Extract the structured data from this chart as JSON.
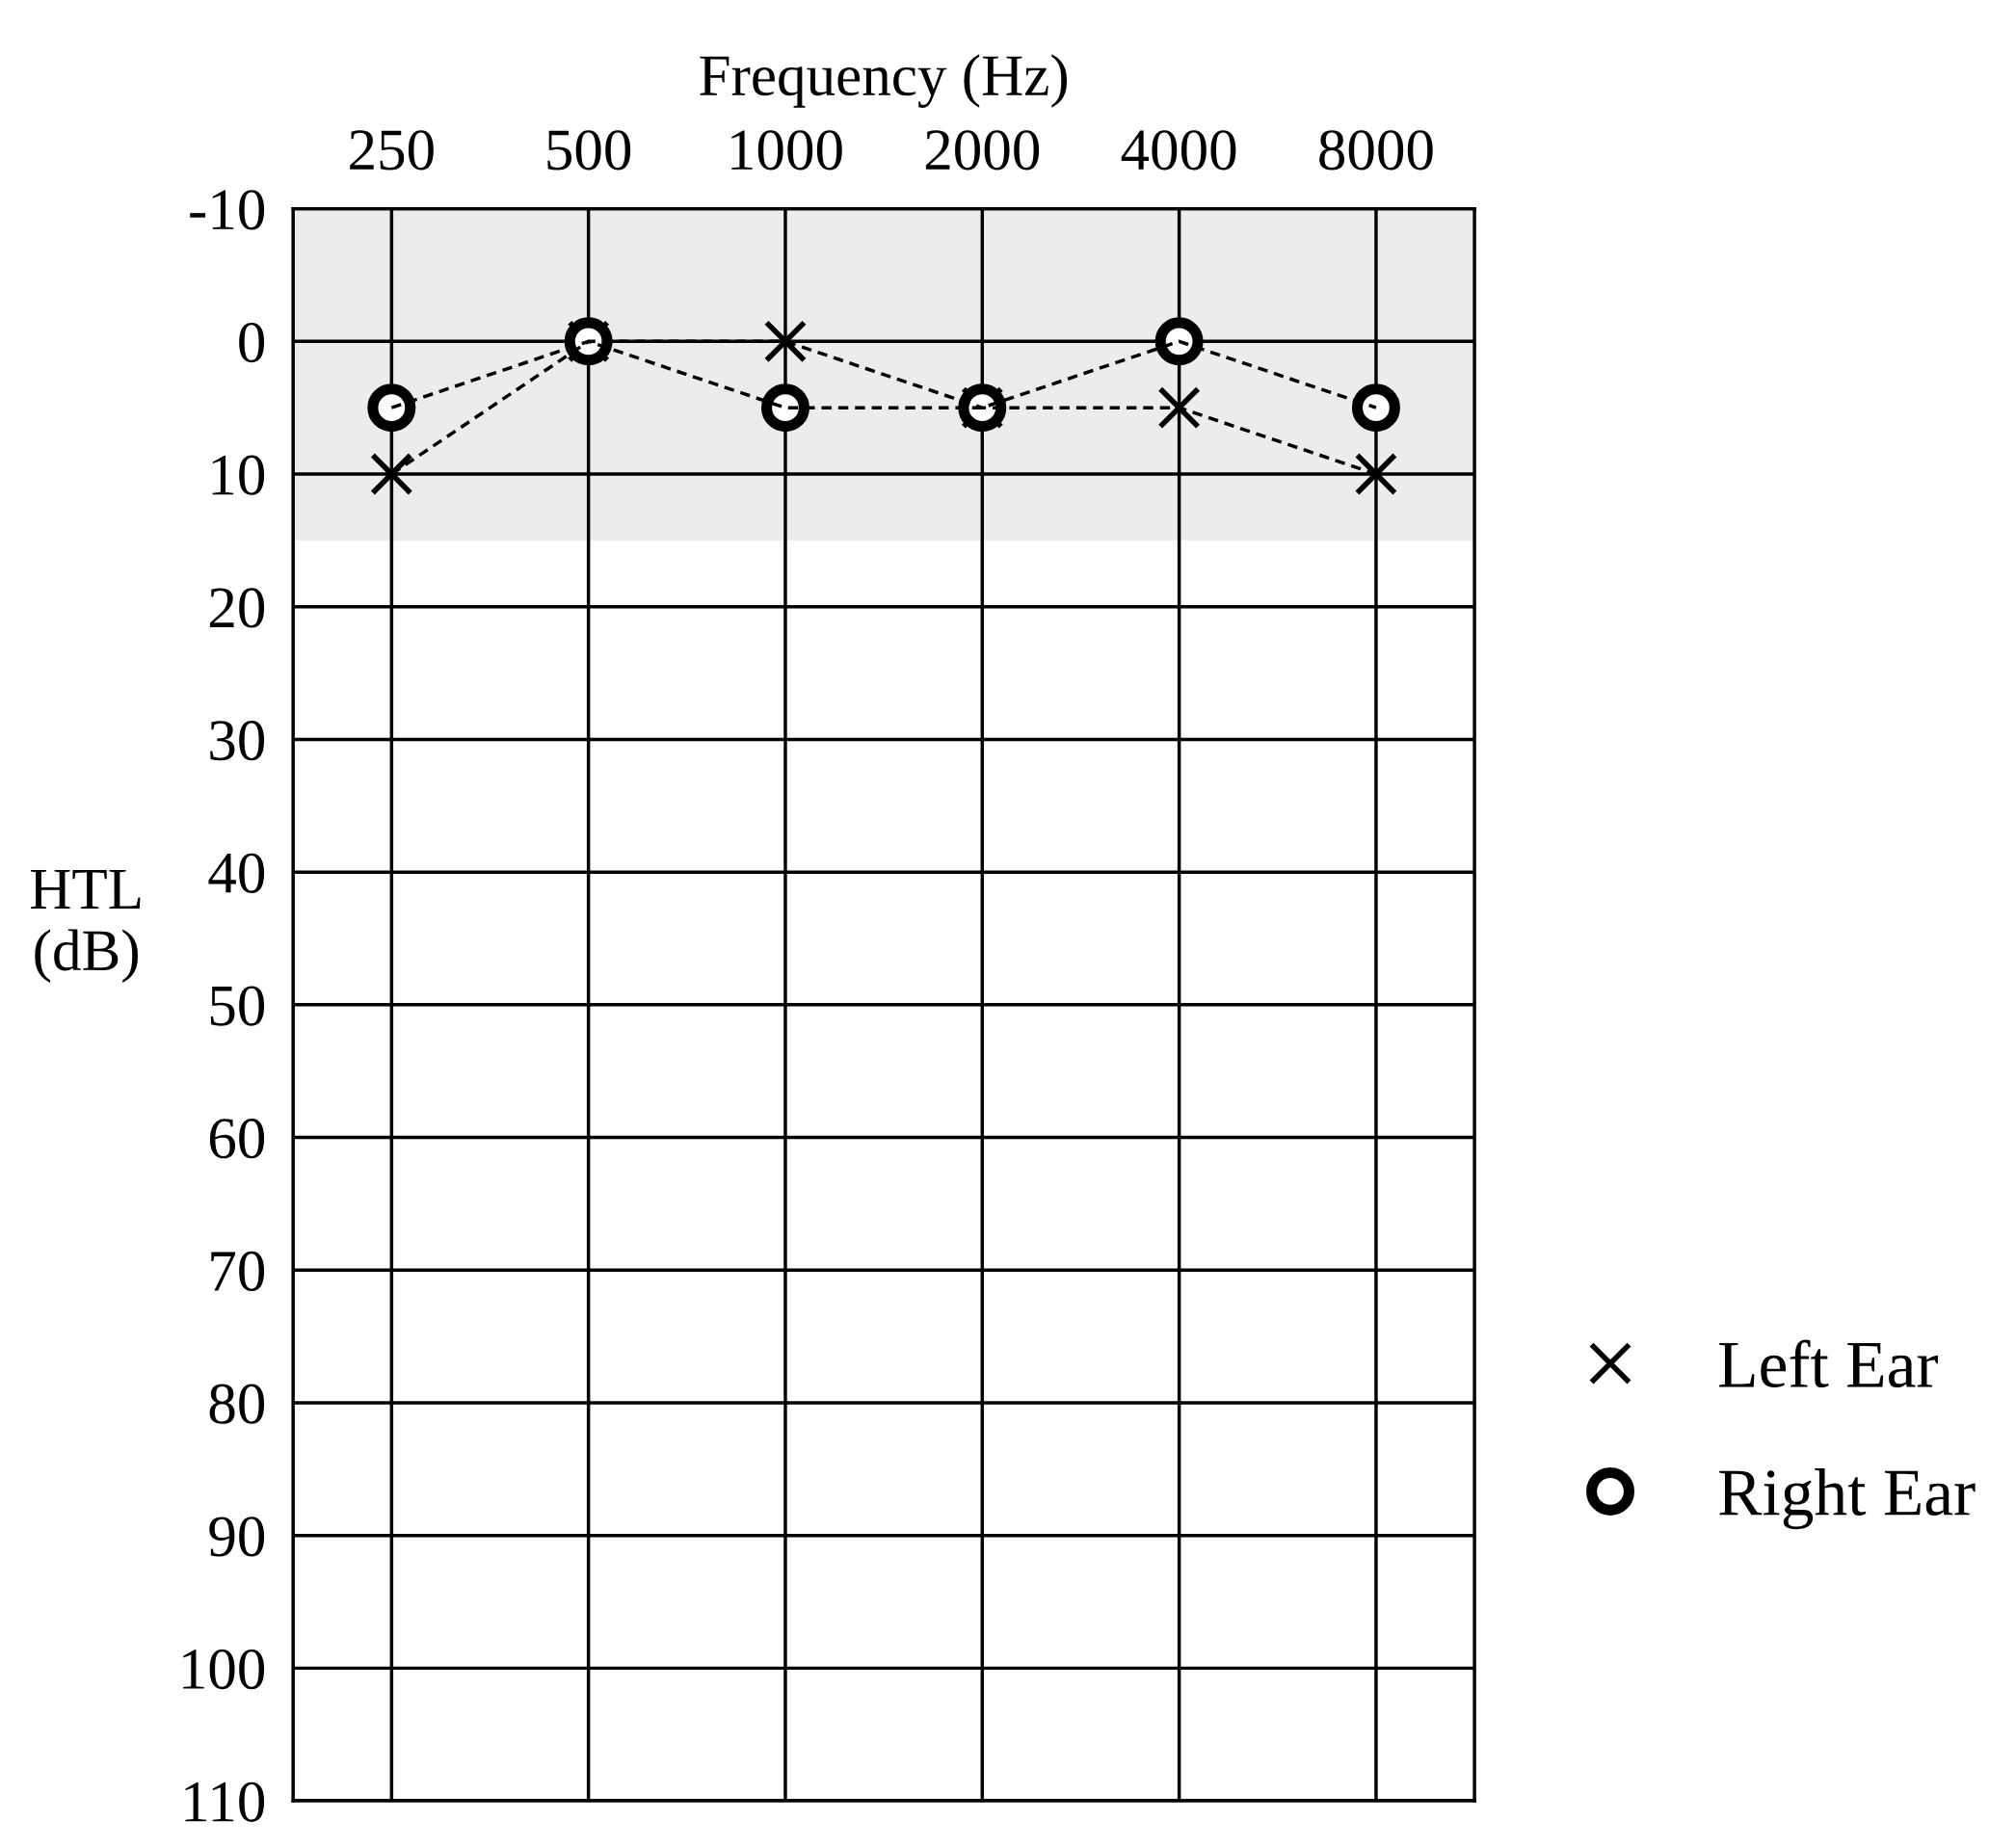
{
  "chart_data": {
    "type": "line",
    "xlabel": "Frequency (Hz)",
    "ylabel": "HTL\n(dB)",
    "categories": [
      "250",
      "500",
      "1000",
      "2000",
      "4000",
      "8000"
    ],
    "series": [
      {
        "name": "Left Ear",
        "color": "#000000",
        "marker": "cross",
        "values": [
          10,
          0,
          0,
          5,
          5,
          10
        ]
      },
      {
        "name": "Right Ear",
        "color": "#000000",
        "marker": "circle",
        "values": [
          5,
          0,
          5,
          5,
          0,
          5
        ]
      }
    ],
    "ylim": [
      110,
      -10
    ],
    "yticks": [
      -10,
      0,
      10,
      20,
      30,
      40,
      50,
      60,
      70,
      80,
      90,
      100,
      110
    ],
    "bands": [
      {
        "axis": "y",
        "from": -10,
        "to": 15,
        "label": null,
        "color": "#ececec"
      }
    ],
    "line_style": "dashed",
    "grid": true,
    "legend": "right"
  }
}
